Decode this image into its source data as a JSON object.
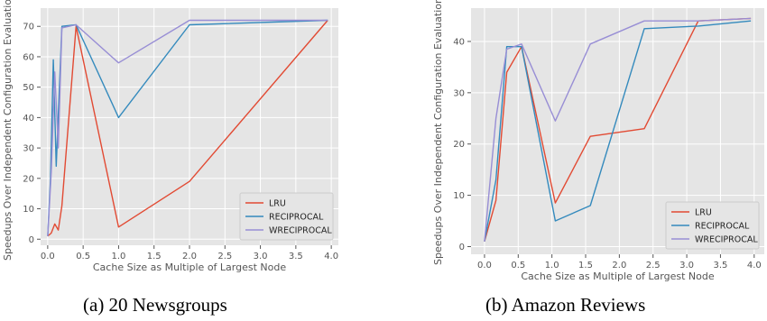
{
  "chart_data": [
    {
      "type": "line",
      "caption": "(a) 20 Newsgroups",
      "xlabel": "Cache Size as Multiple of Largest Node",
      "ylabel": "Speedups Over Independent Configuration Evaluation",
      "xlim": [
        -0.1,
        4.1
      ],
      "ylim": [
        -2,
        76
      ],
      "xticks": [
        0.0,
        0.5,
        1.0,
        1.5,
        2.0,
        2.5,
        3.0,
        3.5,
        4.0
      ],
      "xtick_labels": [
        "0.0",
        "0.5",
        "1.0",
        "1.5",
        "2.0",
        "2.5",
        "3.0",
        "3.5",
        "4.0"
      ],
      "yticks": [
        0,
        10,
        20,
        30,
        40,
        50,
        60,
        70
      ],
      "ytick_labels": [
        "0",
        "10",
        "20",
        "30",
        "40",
        "50",
        "60",
        "70"
      ],
      "grid": true,
      "legend_position": "lower-right",
      "series": [
        {
          "name": "LRU",
          "color": "#e24a33",
          "x": [
            0.0,
            0.05,
            0.1,
            0.15,
            0.2,
            0.4,
            1.0,
            2.0,
            3.95
          ],
          "y": [
            1,
            2,
            5,
            3,
            11,
            70,
            4,
            19,
            72
          ]
        },
        {
          "name": "RECIPROCAL",
          "color": "#348abd",
          "x": [
            0.0,
            0.04,
            0.08,
            0.12,
            0.2,
            0.4,
            1.0,
            2.0,
            3.95
          ],
          "y": [
            1,
            20,
            59,
            24,
            70,
            70.5,
            40,
            70.5,
            72
          ]
        },
        {
          "name": "WRECIPROCAL",
          "color": "#988ed5",
          "x": [
            0.0,
            0.05,
            0.1,
            0.15,
            0.2,
            0.4,
            1.0,
            2.0,
            3.95
          ],
          "y": [
            1,
            22,
            55,
            30,
            69.5,
            70.5,
            58,
            72,
            72
          ]
        }
      ]
    },
    {
      "type": "line",
      "caption": "(b) Amazon Reviews",
      "xlabel": "Cache Size as Multiple of Largest Node",
      "ylabel": "Speedups Over Independent Configuration Evaluation",
      "xlim": [
        -0.2,
        4.15
      ],
      "ylim": [
        -1.5,
        46.5
      ],
      "xticks": [
        0.0,
        0.5,
        1.0,
        1.5,
        2.0,
        2.5,
        3.0,
        3.5,
        4.0
      ],
      "xtick_labels": [
        "0.0",
        "0.5",
        "1.0",
        "1.5",
        "2.0",
        "2.5",
        "3.0",
        "3.5",
        "4.0"
      ],
      "yticks": [
        0,
        10,
        20,
        30,
        40
      ],
      "ytick_labels": [
        "0",
        "10",
        "20",
        "30",
        "40"
      ],
      "grid": true,
      "legend_position": "lower-right",
      "series": [
        {
          "name": "LRU",
          "color": "#e24a33",
          "x": [
            0.0,
            0.17,
            0.33,
            0.55,
            1.05,
            1.57,
            2.37,
            3.17,
            3.95
          ],
          "y": [
            1,
            9,
            34,
            39,
            8.5,
            21.5,
            23,
            44,
            44.5
          ]
        },
        {
          "name": "RECIPROCAL",
          "color": "#348abd",
          "x": [
            0.0,
            0.17,
            0.33,
            0.55,
            1.05,
            1.57,
            2.37,
            3.17,
            3.95
          ],
          "y": [
            1,
            13,
            39,
            39,
            5,
            8,
            42.5,
            43,
            44
          ]
        },
        {
          "name": "WRECIPROCAL",
          "color": "#988ed5",
          "x": [
            0.0,
            0.17,
            0.33,
            0.55,
            1.05,
            1.57,
            2.37,
            3.17,
            3.95
          ],
          "y": [
            1,
            25,
            38.5,
            39.5,
            24.5,
            39.5,
            44,
            44,
            44.5
          ]
        }
      ]
    }
  ]
}
